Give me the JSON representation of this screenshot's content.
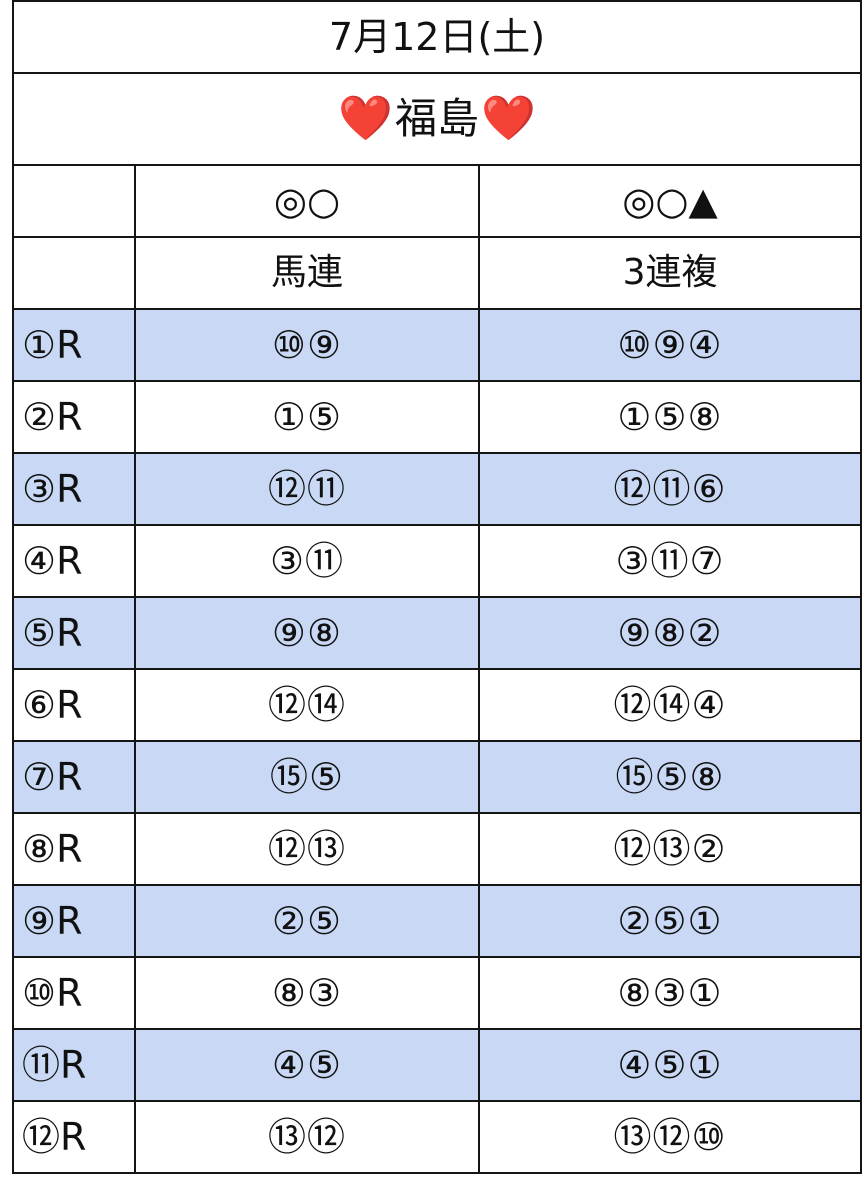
{
  "title": "7月12日(土)",
  "venue": {
    "heart_left": "❤️",
    "name": "福島",
    "heart_right": "❤️"
  },
  "marks": {
    "col1": "◎○",
    "col2": "◎○▲"
  },
  "bet_types": {
    "col1": "馬連",
    "col2": "3連複"
  },
  "colors": {
    "shaded_row": "#c9d9f5",
    "heart": "#e0202a",
    "grid": "#151515"
  },
  "races": [
    {
      "label": "①R",
      "umaren": "⑩⑨",
      "sanrenpuku": "⑩⑨④"
    },
    {
      "label": "②R",
      "umaren": "①⑤",
      "sanrenpuku": "①⑤⑧"
    },
    {
      "label": "③R",
      "umaren": "⑫⑪",
      "sanrenpuku": "⑫⑪⑥"
    },
    {
      "label": "④R",
      "umaren": "③⑪",
      "sanrenpuku": "③⑪⑦"
    },
    {
      "label": "⑤R",
      "umaren": "⑨⑧",
      "sanrenpuku": "⑨⑧②"
    },
    {
      "label": "⑥R",
      "umaren": "⑫⑭",
      "sanrenpuku": "⑫⑭④"
    },
    {
      "label": "⑦R",
      "umaren": "⑮⑤",
      "sanrenpuku": "⑮⑤⑧"
    },
    {
      "label": "⑧R",
      "umaren": "⑫⑬",
      "sanrenpuku": "⑫⑬②"
    },
    {
      "label": "⑨R",
      "umaren": "②⑤",
      "sanrenpuku": "②⑤①"
    },
    {
      "label": "⑩R",
      "umaren": "⑧③",
      "sanrenpuku": "⑧③①"
    },
    {
      "label": "⑪R",
      "umaren": "④⑤",
      "sanrenpuku": "④⑤①"
    },
    {
      "label": "⑫R",
      "umaren": "⑬⑫",
      "sanrenpuku": "⑬⑫⑩"
    }
  ]
}
